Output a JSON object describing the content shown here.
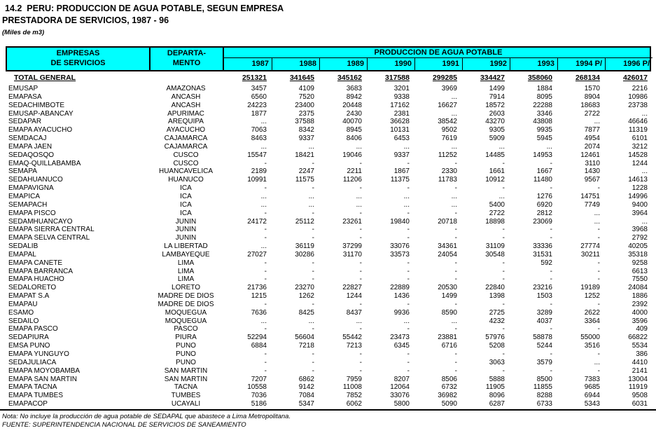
{
  "title_line1": "14.2  PERU: PRODUCCION DE AGUA POTABLE, SEGUN EMPRESA",
  "title_line2": "PRESTADORA DE SERVICIOS, 1987 - 96",
  "unit_note": "(Miles de m3)",
  "colors": {
    "header_bg": "#00FFFF",
    "border": "#000000",
    "text": "#000000",
    "background": "#FFFFFF"
  },
  "table": {
    "col_empresas_line1": "EMPRESAS",
    "col_empresas_line2": "DE SERVICIOS",
    "col_departamento_line1": "DEPARTA-",
    "col_departamento_line2": "MENTO",
    "group_header": "PRODUCCION DE AGUA POTABLE",
    "years": [
      "1987",
      "1988",
      "1989",
      "1990",
      "1991",
      "1992",
      "1993",
      "1994 P/",
      "1996 P/"
    ],
    "total_label": "TOTAL GENERAL",
    "total_values": [
      "251321",
      "341645",
      "345162",
      "317588",
      "299285",
      "334427",
      "358060",
      "268134",
      "426017"
    ],
    "rows": [
      {
        "empresa": "EMUSAP",
        "departamento": "AMAZONAS",
        "values": [
          "3457",
          "4109",
          "3683",
          "3201",
          "3969",
          "1499",
          "1884",
          "1570",
          "2216"
        ]
      },
      {
        "empresa": "EMAPASA",
        "departamento": "ANCASH",
        "values": [
          "6560",
          "7520",
          "8942",
          "9338",
          "...",
          "7914",
          "8095",
          "8904",
          "10986"
        ]
      },
      {
        "empresa": "SEDACHIMBOTE",
        "departamento": "ANCASH",
        "values": [
          "24223",
          "23400",
          "20448",
          "17162",
          "16627",
          "18572",
          "22288",
          "18683",
          "23738"
        ]
      },
      {
        "empresa": "EMUSAP-ABANCAY",
        "departamento": "APURIMAC",
        "values": [
          "1877",
          "2375",
          "2430",
          "2381",
          "...",
          "2603",
          "3346",
          "2722",
          "..."
        ]
      },
      {
        "empresa": "SEDAPAR",
        "departamento": "AREQUIPA",
        "values": [
          "...",
          "37588",
          "40070",
          "36628",
          "38542",
          "43270",
          "43808",
          "...",
          "46646"
        ]
      },
      {
        "empresa": "EMAPA AYACUCHO",
        "departamento": "AYACUCHO",
        "values": [
          "7063",
          "8342",
          "8945",
          "10131",
          "9502",
          "9305",
          "9935",
          "7877",
          "11319"
        ]
      },
      {
        "empresa": "SEMDACAJ",
        "departamento": "CAJAMARCA",
        "values": [
          "8463",
          "9337",
          "8406",
          "6453",
          "7619",
          "5909",
          "5945",
          "4954",
          "6101"
        ]
      },
      {
        "empresa": "EMAPA JAEN",
        "departamento": "CAJAMARCA",
        "values": [
          "...",
          "...",
          "...",
          "...",
          "...",
          "...",
          "...",
          "2074",
          "3212"
        ]
      },
      {
        "empresa": "SEDAQOSQO",
        "departamento": "CUSCO",
        "values": [
          "15547",
          "18421",
          "19046",
          "9337",
          "11252",
          "14485",
          "14953",
          "12461",
          "14528"
        ]
      },
      {
        "empresa": "EMAQ-QUILLABAMBA",
        "departamento": "CUSCO",
        "values": [
          "-",
          "-",
          "-",
          "-",
          "-",
          "-",
          "-",
          "3110",
          "1244"
        ]
      },
      {
        "empresa": "SEMAPA",
        "departamento": "HUANCAVELICA",
        "values": [
          "2189",
          "2247",
          "2211",
          "1867",
          "2330",
          "1661",
          "1667",
          "1430",
          "..."
        ]
      },
      {
        "empresa": "SEDAHUANUCO",
        "departamento": "HUANUCO",
        "values": [
          "10991",
          "11575",
          "11206",
          "11375",
          "11783",
          "10912",
          "11480",
          "9567",
          "14613"
        ]
      },
      {
        "empresa": "EMAPAVIGNA",
        "departamento": "ICA",
        "values": [
          "-",
          "-",
          "-",
          "-",
          "-",
          "-",
          "-",
          "-",
          "1228"
        ]
      },
      {
        "empresa": "EMAPICA",
        "departamento": "ICA",
        "values": [
          "...",
          "...",
          "...",
          "...",
          "...",
          "...",
          "1276",
          "14751",
          "14996"
        ]
      },
      {
        "empresa": "SEMAPACH",
        "departamento": "ICA",
        "values": [
          "...",
          "...",
          "...",
          "...",
          "...",
          "5400",
          "6920",
          "7749",
          "9400"
        ]
      },
      {
        "empresa": "EMAPA PISCO",
        "departamento": "ICA",
        "values": [
          "-",
          "-",
          "-",
          "-",
          "-",
          "2722",
          "2812",
          "...",
          "3964"
        ]
      },
      {
        "empresa": "SEDAMHUANCAYO",
        "departamento": "JUNIN",
        "values": [
          "24172",
          "25112",
          "23261",
          "19840",
          "20718",
          "18898",
          "23069",
          "...",
          "..."
        ]
      },
      {
        "empresa": "EMAPA SIERRA CENTRAL",
        "departamento": "JUNIN",
        "values": [
          "-",
          "-",
          "-",
          "-",
          "-",
          "-",
          "-",
          "-",
          "3968"
        ]
      },
      {
        "empresa": "EMAPA SELVA CENTRAL",
        "departamento": "JUNIN",
        "values": [
          "-",
          "-",
          "-",
          "-",
          "-",
          "-",
          "-",
          "-",
          "2792"
        ]
      },
      {
        "empresa": "SEDALIB",
        "departamento": "LA LIBERTAD",
        "values": [
          "...",
          "36119",
          "37299",
          "33076",
          "34361",
          "31109",
          "33336",
          "27774",
          "40205"
        ]
      },
      {
        "empresa": "EMAPAL",
        "departamento": "LAMBAYEQUE",
        "values": [
          "27027",
          "30286",
          "31170",
          "33573",
          "24054",
          "30548",
          "31531",
          "30211",
          "35318"
        ]
      },
      {
        "empresa": "EMAPA CANETE",
        "departamento": "LIMA",
        "values": [
          "-",
          "-",
          "-",
          "-",
          "-",
          "-",
          "592",
          "-",
          "9258"
        ]
      },
      {
        "empresa": "EMAPA BARRANCA",
        "departamento": "LIMA",
        "values": [
          "-",
          "-",
          "-",
          "-",
          "-",
          "-",
          "-",
          "-",
          "6613"
        ]
      },
      {
        "empresa": "EMAPA HUACHO",
        "departamento": "LIMA",
        "values": [
          "-",
          "-",
          "-",
          "-",
          "-",
          "-",
          "-",
          "-",
          "7550"
        ]
      },
      {
        "empresa": "SEDALORETO",
        "departamento": "LORETO",
        "values": [
          "21736",
          "23270",
          "22827",
          "22889",
          "20530",
          "22840",
          "23216",
          "19189",
          "24084"
        ]
      },
      {
        "empresa": "EMAPAT S.A",
        "departamento": "MADRE DE DIOS",
        "values": [
          "1215",
          "1262",
          "1244",
          "1436",
          "1499",
          "1398",
          "1503",
          "1252",
          "1886"
        ]
      },
      {
        "empresa": "EMAPAU",
        "departamento": "MADRE DE DIOS",
        "values": [
          "-",
          "-",
          "-",
          "-",
          "-",
          "-",
          "-",
          "-",
          "2392"
        ]
      },
      {
        "empresa": "ESAMO",
        "departamento": "MOQUEGUA",
        "values": [
          "7636",
          "8425",
          "8437",
          "9936",
          "8590",
          "2725",
          "3289",
          "2622",
          "4000"
        ]
      },
      {
        "empresa": "SEDAILO",
        "departamento": "MOQUEGUA",
        "values": [
          "...",
          "...",
          "...",
          "...",
          "...",
          "4232",
          "4037",
          "3364",
          "3596"
        ]
      },
      {
        "empresa": "EMAPA PASCO",
        "departamento": "PASCO",
        "values": [
          "-",
          "-",
          "-",
          "-",
          "-",
          "-",
          "-",
          "-",
          "409"
        ]
      },
      {
        "empresa": "SEDAPIURA",
        "departamento": "PIURA",
        "values": [
          "52294",
          "56604",
          "55442",
          "23473",
          "23881",
          "57976",
          "58878",
          "55000",
          "66822"
        ]
      },
      {
        "empresa": "EMSA PUNO",
        "departamento": "PUNO",
        "values": [
          "6884",
          "7218",
          "7213",
          "6345",
          "6716",
          "5208",
          "5244",
          "3516",
          "5534"
        ]
      },
      {
        "empresa": "EMAPA YUNGUYO",
        "departamento": "PUNO",
        "values": [
          "-",
          "-",
          "-",
          "-",
          "-",
          "-",
          "-",
          "-",
          "386"
        ]
      },
      {
        "empresa": "SEDAJULIACA",
        "departamento": "PUNO",
        "values": [
          "-",
          "-",
          "-",
          "-",
          "-",
          "3063",
          "3579",
          "...",
          "4410"
        ]
      },
      {
        "empresa": "EMAPA MOYOBAMBA",
        "departamento": "SAN MARTIN",
        "values": [
          "-",
          "-",
          "-",
          "-",
          "-",
          "-",
          "-",
          "-",
          "2141"
        ]
      },
      {
        "empresa": "EMAPA SAN MARTIN",
        "departamento": "SAN MARTIN",
        "values": [
          "7207",
          "6862",
          "7959",
          "8207",
          "8506",
          "5888",
          "8500",
          "7383",
          "13004"
        ]
      },
      {
        "empresa": "EMAPA TACNA",
        "departamento": "TACNA",
        "values": [
          "10558",
          "9142",
          "11008",
          "12064",
          "6732",
          "11905",
          "11855",
          "9685",
          "11919"
        ]
      },
      {
        "empresa": "EMAPA TUMBES",
        "departamento": "TUMBES",
        "values": [
          "7036",
          "7084",
          "7852",
          "33076",
          "36982",
          "8096",
          "8288",
          "6944",
          "9508"
        ]
      },
      {
        "empresa": "EMAPACOP",
        "departamento": "UCAYALI",
        "values": [
          "5186",
          "5347",
          "6062",
          "5800",
          "5090",
          "6287",
          "6733",
          "5343",
          "6031"
        ]
      }
    ]
  },
  "footer": {
    "nota": "Nota: No incluye la producción de agua potable de SEDAPAL que abastece a Lima Metropolitana.",
    "fuente": "FUENTE: SUPERINTENDENCIA NACIONAL DE SERVICIOS DE SANEAMIENTO"
  }
}
